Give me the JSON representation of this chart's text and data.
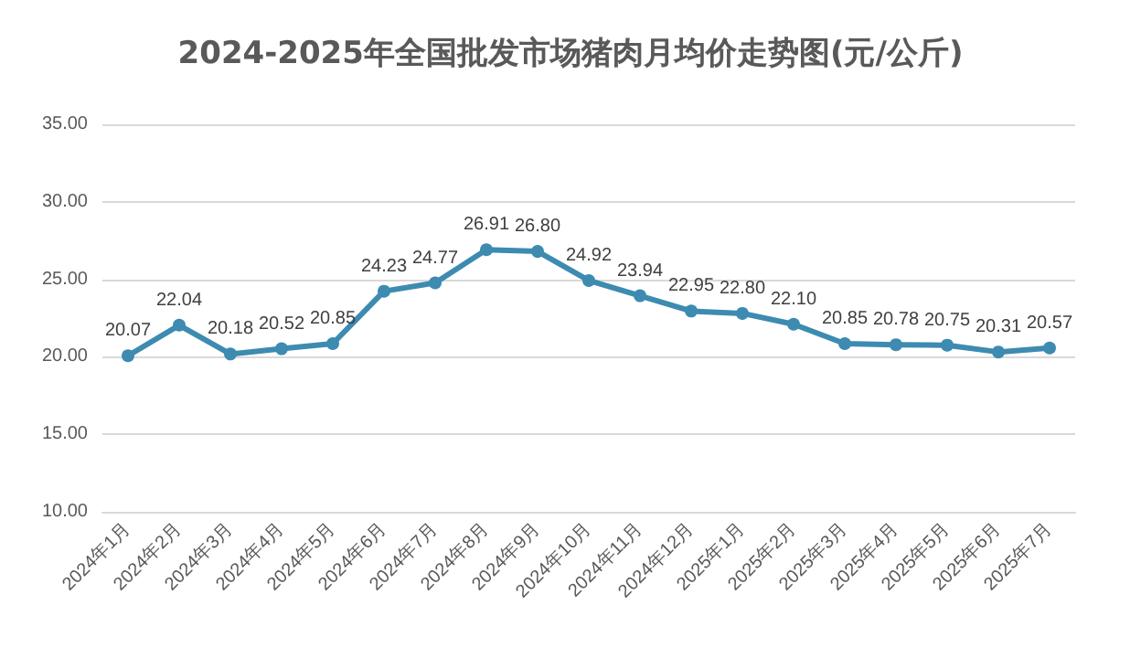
{
  "chart_data": {
    "type": "line",
    "title": "2024-2025年全国批发市场猪肉月均价走势图(元/公斤)",
    "categories": [
      "2024年1月",
      "2024年2月",
      "2024年3月",
      "2024年4月",
      "2024年5月",
      "2024年6月",
      "2024年7月",
      "2024年8月",
      "2024年9月",
      "2024年10月",
      "2024年11月",
      "2024年12月",
      "2025年1月",
      "2025年2月",
      "2025年3月",
      "2025年4月",
      "2025年5月",
      "2025年6月",
      "2025年7月"
    ],
    "series": [
      {
        "color": "#3d8bb0",
        "values": [
          20.07,
          22.04,
          20.18,
          20.52,
          20.85,
          24.23,
          24.77,
          26.91,
          26.8,
          24.92,
          23.94,
          22.95,
          22.8,
          22.1,
          20.85,
          20.78,
          20.75,
          20.31,
          20.57
        ],
        "value_labels": [
          "20.07",
          "22.04",
          "20.18",
          "20.52",
          "20.85",
          "24.23",
          "24.77",
          "26.91",
          "26.80",
          "24.92",
          "23.94",
          "22.95",
          "22.80",
          "22.10",
          "20.85",
          "20.78",
          "20.75",
          "20.31",
          "20.57"
        ]
      }
    ],
    "ylim": [
      10,
      35
    ],
    "yticks": [
      {
        "value": 10,
        "label": "10.00"
      },
      {
        "value": 15,
        "label": "15.00"
      },
      {
        "value": 20,
        "label": "20.00"
      },
      {
        "value": 25,
        "label": "25.00"
      },
      {
        "value": 30,
        "label": "30.00"
      },
      {
        "value": 35,
        "label": "35.00"
      }
    ],
    "grid": "y",
    "marker": "circle",
    "line_style": "solid"
  }
}
